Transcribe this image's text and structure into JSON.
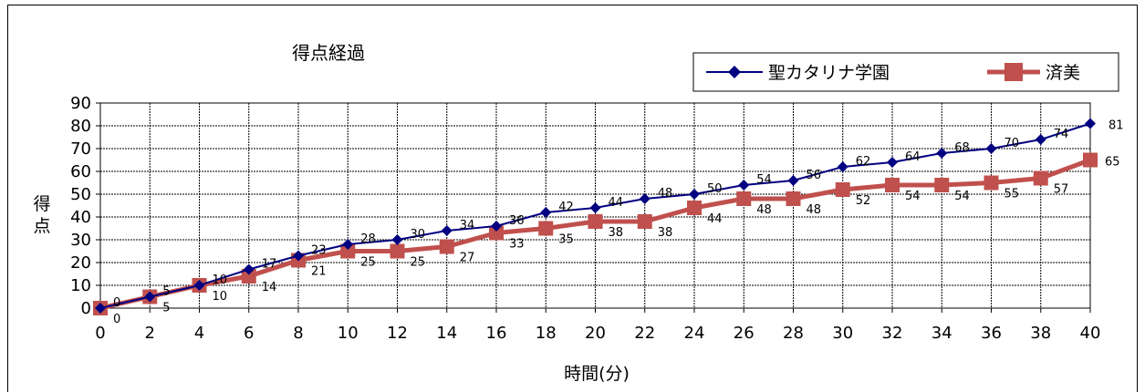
{
  "chart_data": {
    "type": "line",
    "title": "得点経過",
    "xlabel": "時間(分)",
    "ylabel": "得点",
    "x": [
      0,
      2,
      4,
      6,
      8,
      10,
      12,
      14,
      16,
      18,
      20,
      22,
      24,
      26,
      28,
      30,
      32,
      34,
      36,
      38,
      40
    ],
    "xlim": [
      0,
      40
    ],
    "ylim": [
      0,
      90
    ],
    "x_ticks": [
      0,
      2,
      4,
      6,
      8,
      10,
      12,
      14,
      16,
      18,
      20,
      22,
      24,
      26,
      28,
      30,
      32,
      34,
      36,
      38,
      40
    ],
    "y_ticks": [
      0,
      10,
      20,
      30,
      40,
      50,
      60,
      70,
      80,
      90
    ],
    "grid": true,
    "legend_position": "top-right",
    "series": [
      {
        "name": "聖カタリナ学園",
        "color": "#000080",
        "marker": "diamond",
        "values": [
          0,
          5,
          10,
          17,
          23,
          28,
          30,
          34,
          36,
          42,
          44,
          48,
          50,
          54,
          56,
          62,
          64,
          68,
          70,
          74,
          81
        ]
      },
      {
        "name": "済美",
        "color": "#c0504d",
        "marker": "square",
        "values": [
          0,
          5,
          10,
          14,
          21,
          25,
          25,
          27,
          33,
          35,
          38,
          38,
          44,
          48,
          48,
          52,
          54,
          54,
          55,
          57,
          65
        ]
      }
    ]
  }
}
